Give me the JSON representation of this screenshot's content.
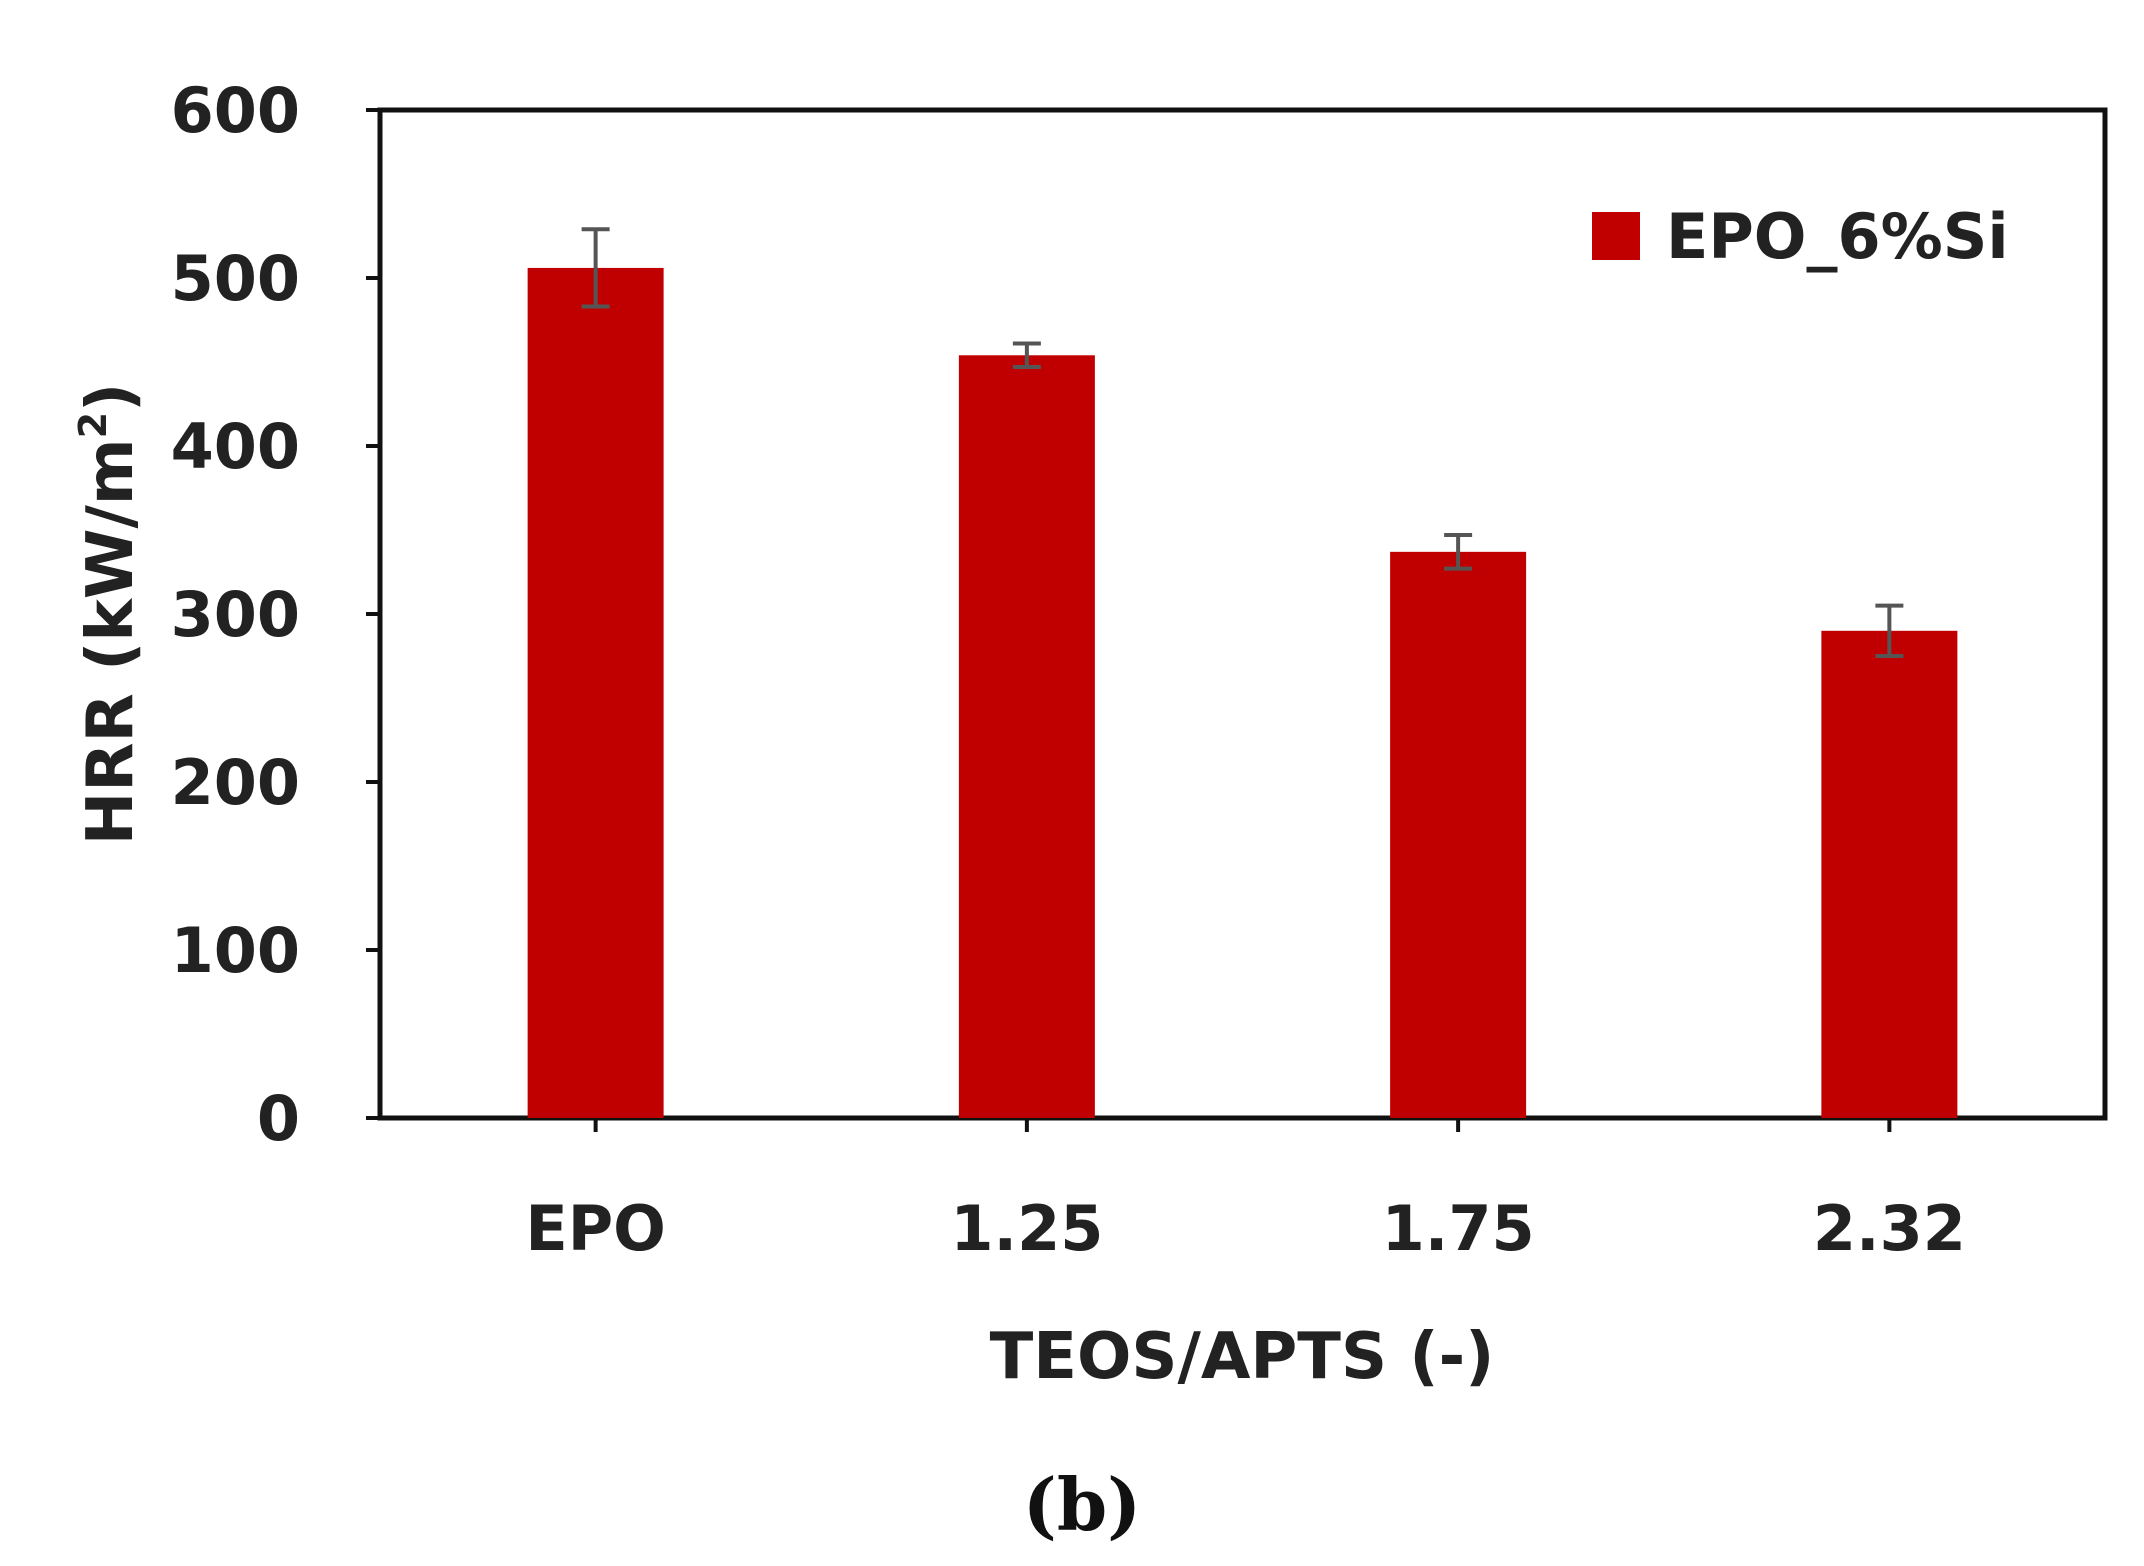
{
  "chart_data": {
    "type": "bar",
    "categories": [
      "EPO",
      "1.25",
      "1.75",
      "2.32"
    ],
    "series": [
      {
        "name": "EPO_6%Si",
        "values": [
          506,
          454,
          337,
          290
        ],
        "error": [
          23,
          7,
          10,
          15
        ],
        "color": "#c00000"
      }
    ],
    "xlabel": "TEOS/APTS (-)",
    "ylabel": "HRR (kW/m²)",
    "ylabel_main": "HRR (kW/m",
    "ylabel_sup": "2",
    "ylabel_close": ")",
    "ylim": [
      0,
      600
    ],
    "yticks": [
      0,
      100,
      200,
      300,
      400,
      500,
      600
    ],
    "ytick_labels": [
      "0",
      "100",
      "200",
      "300",
      "400",
      "500",
      "600"
    ],
    "grid": false,
    "legend_position": "top-right",
    "panel_label": "(b)",
    "error_bar_color": "#555555",
    "axis_color": "#111111"
  }
}
